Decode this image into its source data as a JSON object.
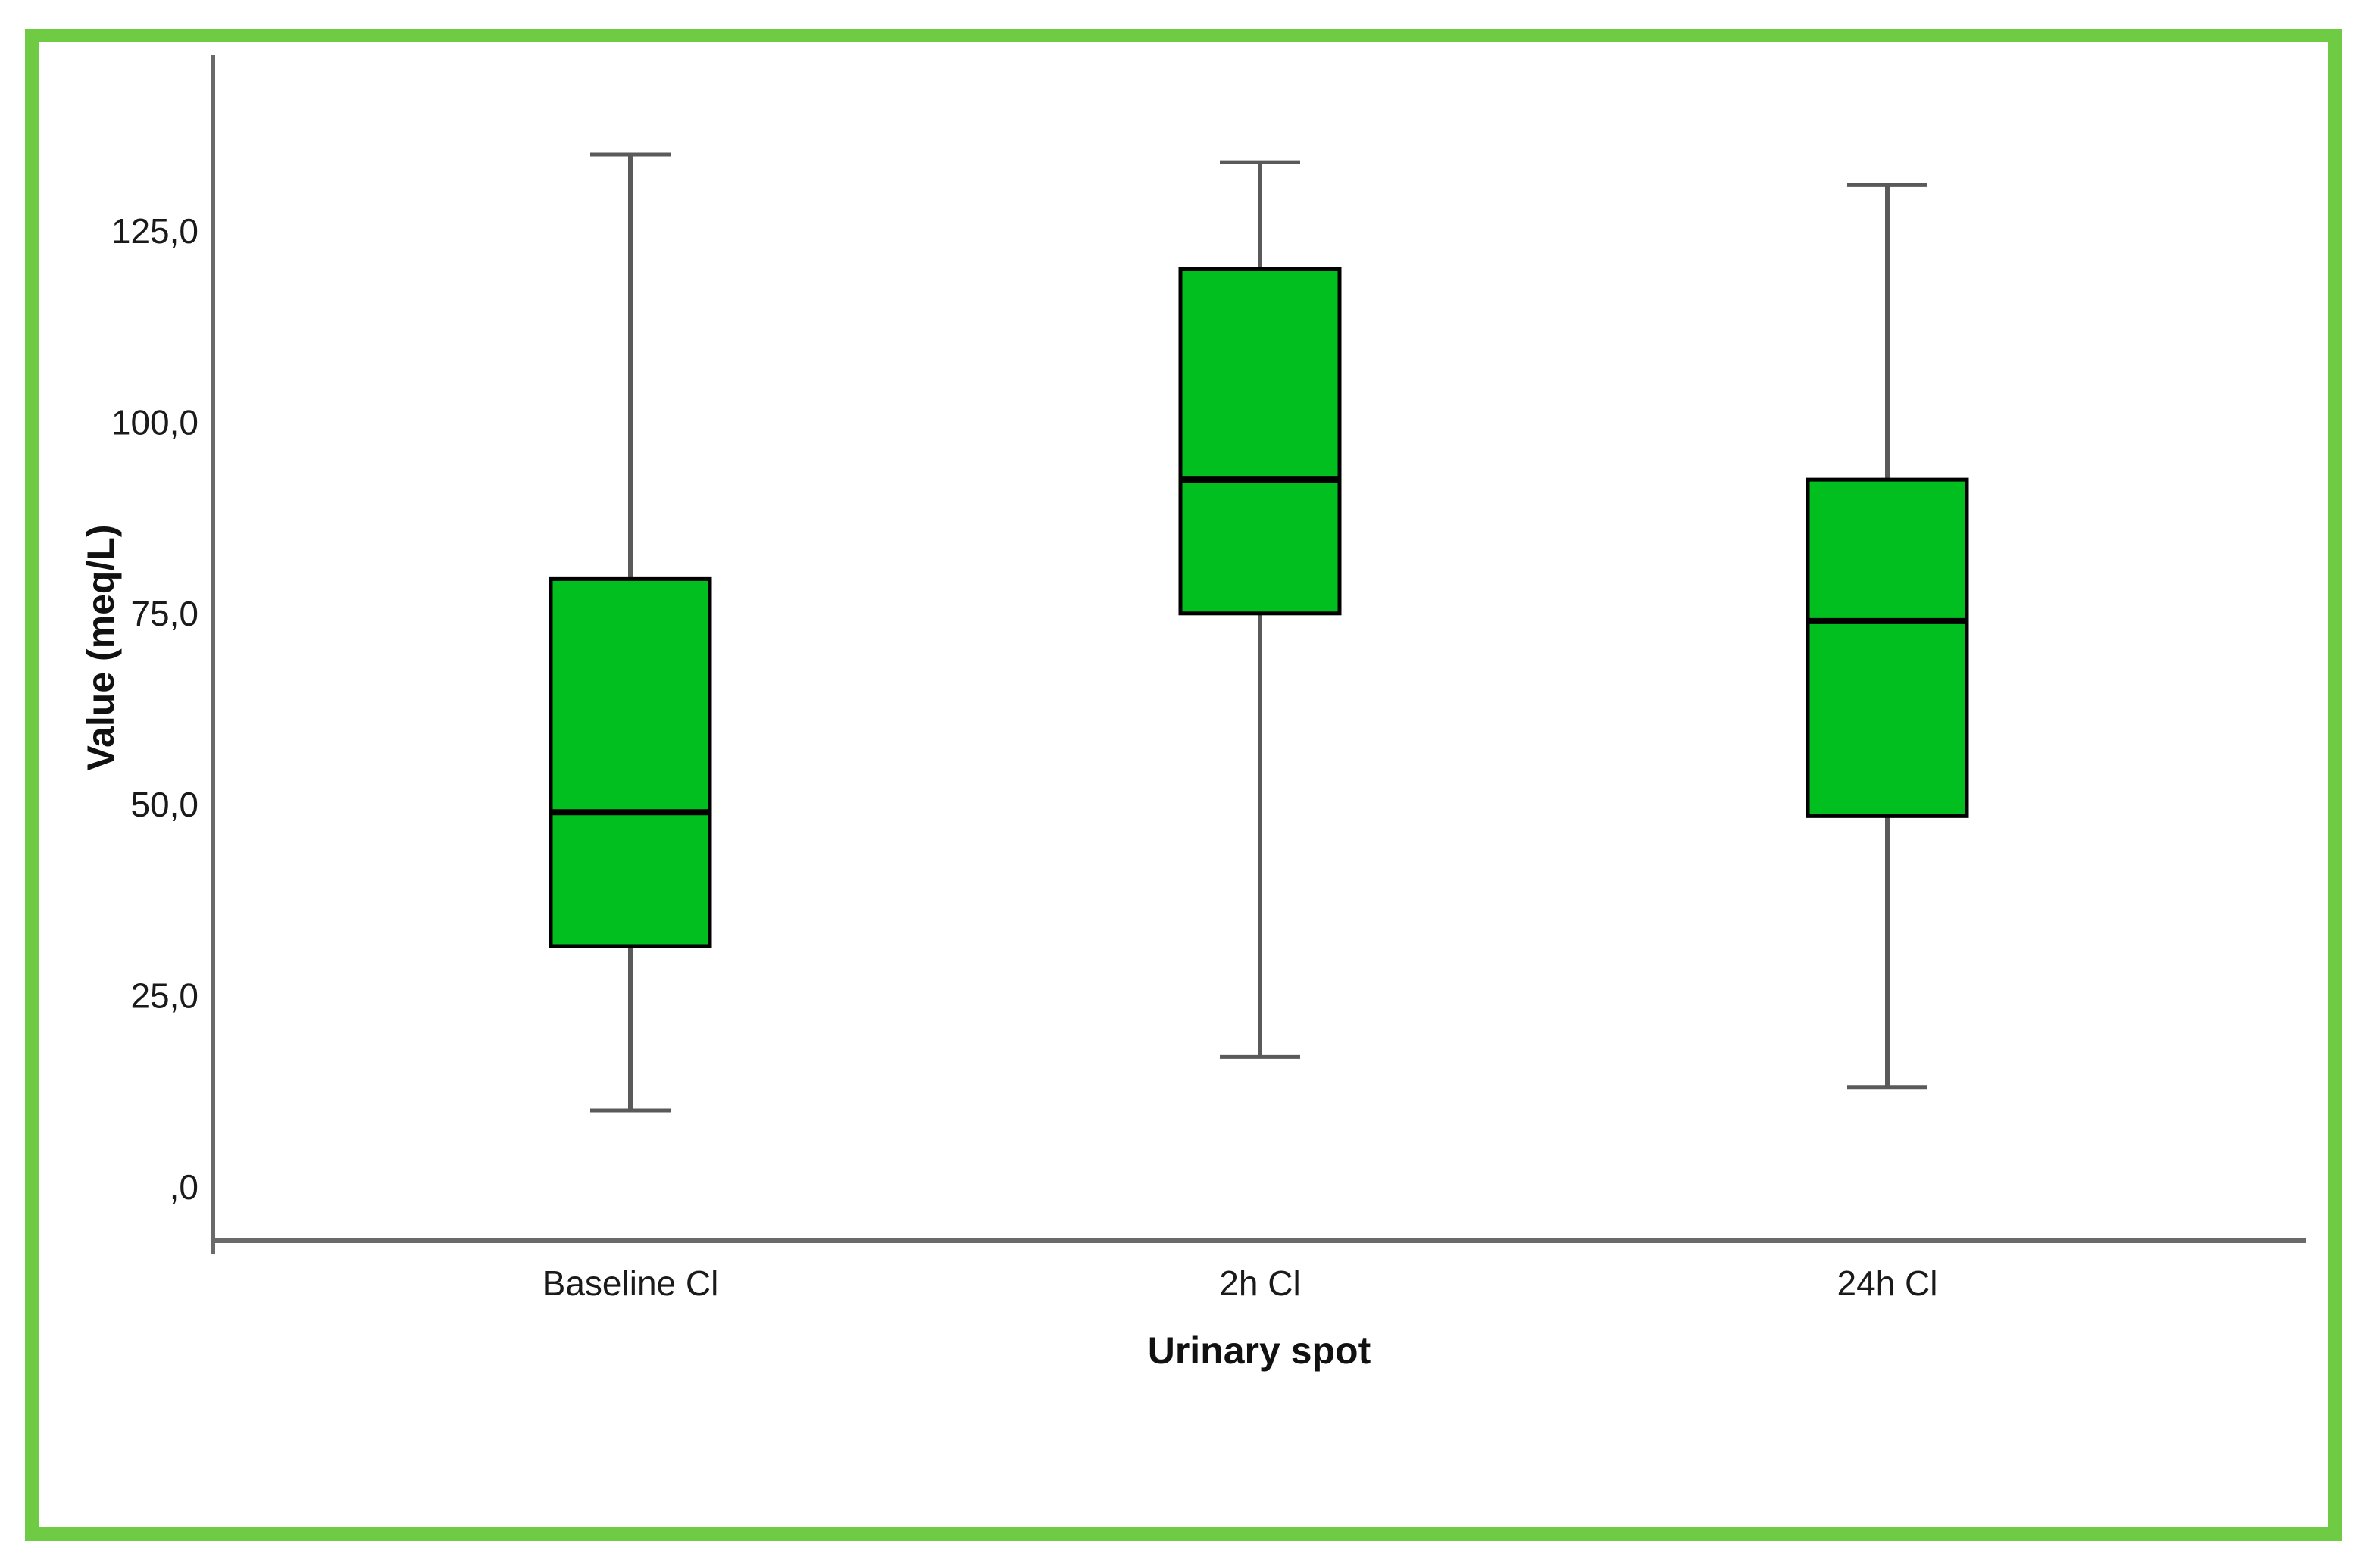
{
  "chart_data": {
    "type": "boxplot",
    "title": "",
    "xlabel": "Urinary spot",
    "ylabel": "Value (meq/L)",
    "categories": [
      "Baseline Cl",
      "2h Cl",
      "24h Cl"
    ],
    "series": [
      {
        "name": "Baseline Cl",
        "whisker_low": 10,
        "q1": 31.5,
        "median": 49,
        "q3": 79.5,
        "whisker_high": 135
      },
      {
        "name": "2h Cl",
        "whisker_low": 17,
        "q1": 75,
        "median": 92.5,
        "q3": 120,
        "whisker_high": 134
      },
      {
        "name": "24h Cl",
        "whisker_low": 13,
        "q1": 48.5,
        "median": 74,
        "q3": 92.5,
        "whisker_high": 131
      }
    ],
    "y_axis": {
      "tick_values": [
        0,
        25,
        50,
        75,
        100,
        125
      ],
      "tick_labels": [
        ",0",
        "25,0",
        "50,0",
        "75,0",
        "100,0",
        "125,0"
      ],
      "range": [
        -7,
        148
      ]
    },
    "grid": false,
    "legend": "none",
    "colors": {
      "box_fill": "#00BF1F",
      "box_border": "#000000",
      "median": "#000000",
      "whisker": "#5a5a5a",
      "axis": "#6a6a6a",
      "text": "#1a1a1a",
      "frame": "#6FCB43",
      "background": "#ffffff"
    }
  }
}
